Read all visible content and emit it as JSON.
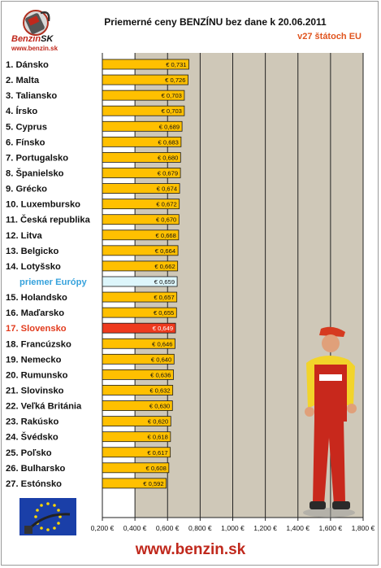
{
  "logo": {
    "brand": "Benzin",
    "brand_suffix": "SK",
    "url": "www.benzin.sk"
  },
  "footer": {
    "url": "www.benzin.sk"
  },
  "colors": {
    "bar": "#ffc000",
    "bar_highlight": "#ee3a1e",
    "bar_average": "#ddf6fb",
    "plot_bg": "#cfc8b8",
    "highlight_label": "#e23b1d",
    "average_label": "#36a2dc"
  },
  "chart_data": {
    "type": "bar",
    "orientation": "horizontal",
    "title": "Priemerné ceny BENZÍNU bez dane k 20.06.2011",
    "subtitle": "v27 štátoch EU",
    "xlim": [
      0.2,
      1.8
    ],
    "xticks": [
      "0,200 €",
      "0,400 €",
      "0,600 €",
      "0,800 €",
      "1,000 €",
      "1,200 €",
      "1,400 €",
      "1,600 €",
      "1,800 €"
    ],
    "grid": "vertical",
    "categories": [
      "1. Dánsko",
      "2. Malta",
      "3. Taliansko",
      "4. Írsko",
      "5. Cyprus",
      "6. Fínsko",
      "7. Portugalsko",
      "8. Španielsko",
      "9. Grécko",
      "10. Luxembursko",
      "11. Česká republika",
      "12. Litva",
      "13. Belgicko",
      "14. Lotyšsko",
      "priemer Európy",
      "15. Holandsko",
      "16. Maďarsko",
      "17. Slovensko",
      "18. Francúzsko",
      "19. Nemecko",
      "20. Rumunsko",
      "21. Slovinsko",
      "22. Veľká Británia",
      "23. Rakúsko",
      "24. Švédsko",
      "25. Poľsko",
      "26. Bulharsko",
      "27. Estónsko"
    ],
    "values": [
      0.731,
      0.726,
      0.703,
      0.703,
      0.689,
      0.683,
      0.68,
      0.679,
      0.674,
      0.672,
      0.67,
      0.668,
      0.664,
      0.662,
      0.659,
      0.657,
      0.655,
      0.649,
      0.646,
      0.64,
      0.636,
      0.632,
      0.63,
      0.62,
      0.618,
      0.617,
      0.608,
      0.592
    ],
    "value_labels": [
      "€ 0,731",
      "€ 0,726",
      "€ 0,703",
      "€ 0,703",
      "€ 0,689",
      "€ 0,683",
      "€ 0,680",
      "€ 0,679",
      "€ 0,674",
      "€ 0,672",
      "€ 0,670",
      "€ 0,668",
      "€ 0,664",
      "€ 0,662",
      "€ 0,659",
      "€ 0,657",
      "€ 0,655",
      "€ 0,649",
      "€ 0,646",
      "€ 0,640",
      "€ 0,636",
      "€ 0,632",
      "€ 0,630",
      "€ 0,620",
      "€ 0,618",
      "€ 0,617",
      "€ 0,608",
      "€ 0,592"
    ],
    "highlight_category": "17. Slovensko",
    "average_category": "priemer Európy"
  }
}
